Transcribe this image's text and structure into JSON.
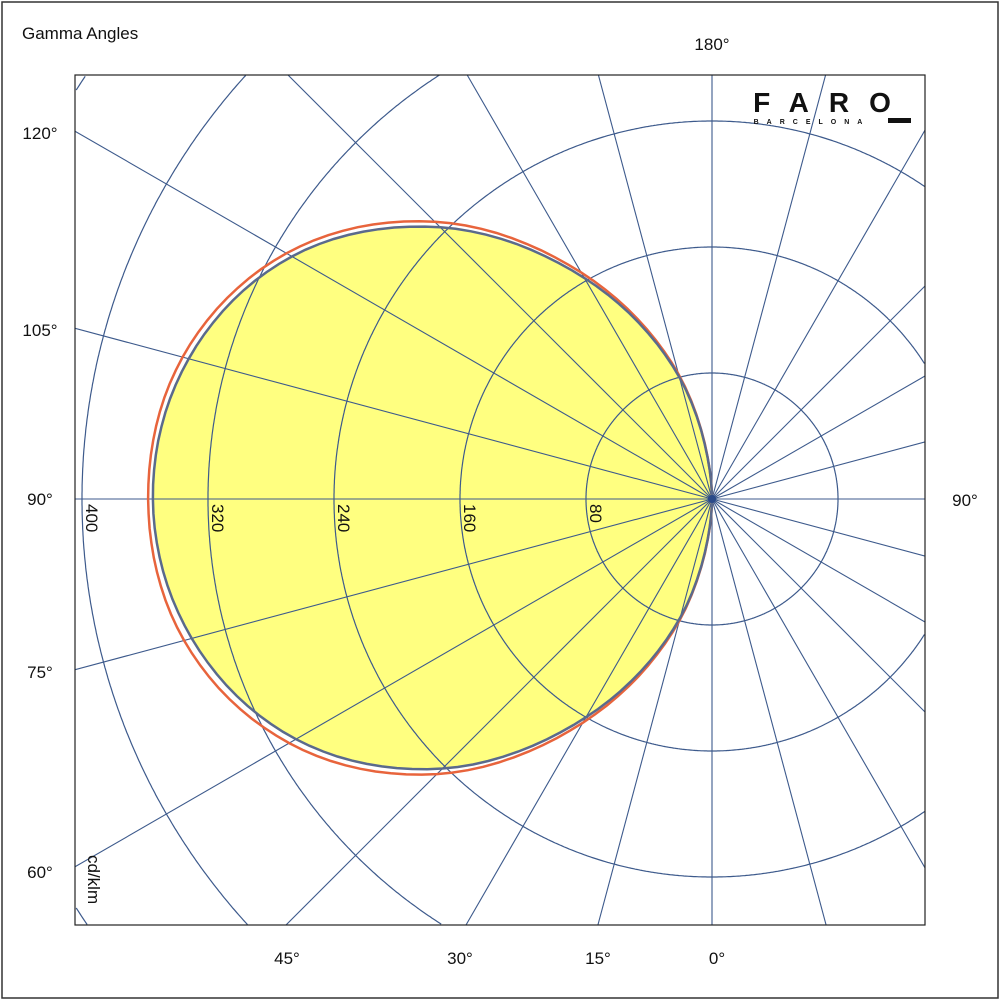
{
  "chart_data": {
    "type": "polar",
    "title": "Gamma Angles",
    "unit_label": "cd/klm",
    "radial_ticks": [
      80,
      160,
      240,
      320,
      400
    ],
    "radial_tick_labels": [
      "80",
      "160",
      "240",
      "320",
      "400"
    ],
    "angle_step_deg": 15,
    "angle_labels": {
      "top": "180°",
      "right": "90°",
      "left": [
        "120°",
        "105°",
        "90°",
        "75°",
        "60°"
      ],
      "bottom": [
        "45°",
        "30°",
        "15°",
        "0°"
      ]
    },
    "gamma": [
      0,
      15,
      30,
      45,
      60,
      75,
      90,
      105,
      120,
      135,
      150,
      165,
      180
    ],
    "series": [
      {
        "values": [
          0,
          78,
          160,
          242,
          305,
          342,
          355,
          344,
          308,
          244,
          162,
          80,
          0
        ],
        "color": "#5a6a8c",
        "fill": "#ffff80"
      },
      {
        "values": [
          0,
          80,
          164,
          247,
          310,
          347,
          358,
          348,
          312,
          249,
          166,
          82,
          0
        ],
        "color": "#e8643c"
      }
    ],
    "grid_color": "#3d5a8c"
  },
  "logo": {
    "main": "FARO",
    "sub": "BARCELONA"
  }
}
